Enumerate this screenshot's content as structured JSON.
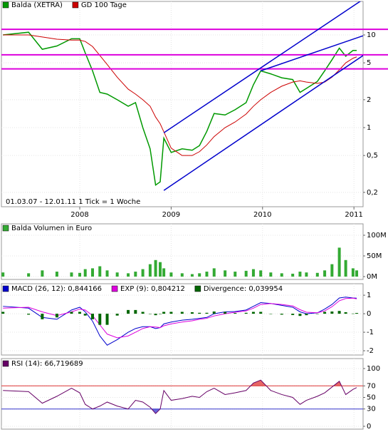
{
  "chart_data": [
    {
      "type": "line",
      "log_scale": true,
      "annotation": "01.03.07 - 12.01.11   1 Tick = 1 Woche",
      "x": [
        2007.16,
        2007.44,
        2007.59,
        2007.75,
        2007.91,
        2008.0,
        2008.06,
        2008.14,
        2008.22,
        2008.3,
        2008.41,
        2008.53,
        2008.61,
        2008.69,
        2008.77,
        2008.83,
        2008.88,
        2008.92,
        2009.0,
        2009.12,
        2009.23,
        2009.31,
        2009.39,
        2009.47,
        2009.59,
        2009.7,
        2009.82,
        2009.9,
        2009.98,
        2010.09,
        2010.21,
        2010.33,
        2010.41,
        2010.48,
        2010.6,
        2010.68,
        2010.76,
        2010.84,
        2010.91,
        2010.99,
        2011.03
      ],
      "xlim": [
        2007.143,
        2011.1
      ],
      "xticks": [
        2008,
        2009,
        2010,
        2011
      ],
      "ylim": [
        0.14,
        23
      ],
      "yticks": [
        {
          "value": 0.2,
          "label": "0,2"
        },
        {
          "value": 0.5,
          "label": "0,5"
        },
        1,
        2,
        5,
        10
      ],
      "series": [
        {
          "name": "Balda (XETRA)",
          "color": "#009900",
          "values": [
            10,
            10.7,
            7,
            7.6,
            9.1,
            9.1,
            6.4,
            4.1,
            2.4,
            2.3,
            2,
            1.7,
            1.86,
            1,
            0.59,
            0.24,
            0.26,
            0.77,
            0.54,
            0.59,
            0.57,
            0.64,
            0.91,
            1.42,
            1.37,
            1.56,
            1.86,
            2.9,
            4.1,
            3.8,
            3.45,
            3.3,
            2.4,
            2.65,
            3.15,
            4.1,
            5.4,
            7.2,
            5.9,
            6.8,
            6.8
          ]
        },
        {
          "name": "GD 100 Tage",
          "color": "#cc0000",
          "values": [
            10,
            10,
            9.5,
            9,
            8.8,
            8.8,
            8.5,
            7.5,
            6,
            4.8,
            3.5,
            2.6,
            2.3,
            2.0,
            1.7,
            1.3,
            1.1,
            0.9,
            0.6,
            0.5,
            0.5,
            0.55,
            0.65,
            0.8,
            1.0,
            1.15,
            1.4,
            1.7,
            2.0,
            2.4,
            2.8,
            3.1,
            3.2,
            3.1,
            3.0,
            3.1,
            3.5,
            4.2,
            5.0,
            5.6,
            5.8
          ]
        }
      ],
      "horizontal_lines": {
        "color": "#dd00dd",
        "values": [
          11.5,
          6.1,
          4.3
        ]
      },
      "trend_lines": {
        "color": "#0000cc",
        "lines": [
          {
            "x": [
              2008.92,
              2011.1
            ],
            "y": [
              0.88,
              24.2
            ]
          },
          {
            "x": [
              2008.92,
              2011.1
            ],
            "y": [
              0.21,
              6.0
            ]
          },
          {
            "x": [
              2009.98,
              2011.1
            ],
            "y": [
              4.1,
              9.8
            ]
          }
        ]
      }
    },
    {
      "type": "bar",
      "x": [
        2007.16,
        2007.44,
        2007.59,
        2007.75,
        2007.91,
        2008.0,
        2008.06,
        2008.14,
        2008.22,
        2008.3,
        2008.41,
        2008.53,
        2008.61,
        2008.69,
        2008.77,
        2008.83,
        2008.88,
        2008.92,
        2009.0,
        2009.12,
        2009.23,
        2009.31,
        2009.39,
        2009.47,
        2009.59,
        2009.7,
        2009.82,
        2009.9,
        2009.98,
        2010.09,
        2010.21,
        2010.33,
        2010.41,
        2010.48,
        2010.6,
        2010.68,
        2010.76,
        2010.84,
        2010.91,
        2010.99,
        2011.03
      ],
      "xlim": [
        2007.143,
        2011.1
      ],
      "ylim": [
        0,
        100000000
      ],
      "yticks": [
        {
          "value": 0,
          "label": "0M"
        },
        {
          "value": 50000000,
          "label": "50M"
        },
        {
          "value": 100000000,
          "label": "100M"
        }
      ],
      "series": [
        {
          "name": "Balda Volumen in Euro",
          "color": "#33aa33",
          "values": [
            10000000,
            8000000,
            15000000,
            12000000,
            10000000,
            9000000,
            18000000,
            20000000,
            25000000,
            15000000,
            10000000,
            8000000,
            12000000,
            18000000,
            30000000,
            40000000,
            35000000,
            20000000,
            10000000,
            8000000,
            6000000,
            8000000,
            12000000,
            20000000,
            15000000,
            12000000,
            14000000,
            18000000,
            15000000,
            10000000,
            8000000,
            7000000,
            12000000,
            10000000,
            9000000,
            15000000,
            30000000,
            70000000,
            40000000,
            20000000,
            15000000
          ]
        }
      ]
    },
    {
      "type": "line",
      "x": [
        2007.16,
        2007.44,
        2007.59,
        2007.75,
        2007.91,
        2008.0,
        2008.06,
        2008.14,
        2008.22,
        2008.3,
        2008.41,
        2008.53,
        2008.61,
        2008.69,
        2008.77,
        2008.83,
        2008.88,
        2008.92,
        2009.0,
        2009.12,
        2009.23,
        2009.31,
        2009.39,
        2009.47,
        2009.59,
        2009.7,
        2009.82,
        2009.9,
        2009.98,
        2010.09,
        2010.21,
        2010.33,
        2010.41,
        2010.48,
        2010.6,
        2010.68,
        2010.76,
        2010.84,
        2010.91,
        2010.99,
        2011.03
      ],
      "xlim": [
        2007.143,
        2011.1
      ],
      "ylim": [
        -2.23,
        1.62
      ],
      "yticks": [
        -2,
        -1,
        0,
        1
      ],
      "series": [
        {
          "name": "MACD (26, 12): 0,844166",
          "color": "#0000cc",
          "values": [
            0.4,
            0.3,
            -0.2,
            -0.3,
            0.2,
            0.35,
            0.1,
            -0.4,
            -1.2,
            -1.7,
            -1.4,
            -1.0,
            -0.8,
            -0.7,
            -0.7,
            -0.8,
            -0.75,
            -0.55,
            -0.45,
            -0.35,
            -0.3,
            -0.25,
            -0.2,
            0.0,
            0.1,
            0.12,
            0.2,
            0.4,
            0.6,
            0.55,
            0.45,
            0.35,
            0.1,
            0.0,
            0.05,
            0.25,
            0.5,
            0.85,
            0.9,
            0.85,
            0.84
          ]
        },
        {
          "name": "EXP (9): 0,804212",
          "color": "#dd00dd",
          "values": [
            0.3,
            0.35,
            0.1,
            -0.1,
            0.1,
            0.25,
            0.2,
            -0.1,
            -0.6,
            -1.1,
            -1.3,
            -1.2,
            -1.0,
            -0.8,
            -0.7,
            -0.72,
            -0.75,
            -0.65,
            -0.55,
            -0.45,
            -0.38,
            -0.3,
            -0.25,
            -0.12,
            0.0,
            0.08,
            0.15,
            0.3,
            0.5,
            0.55,
            0.5,
            0.42,
            0.22,
            0.08,
            0.05,
            0.15,
            0.38,
            0.7,
            0.82,
            0.84,
            0.8
          ]
        },
        {
          "name": "Divergence: 0,039954",
          "color": "#006600",
          "type": "bar",
          "values": [
            0.1,
            -0.05,
            -0.3,
            -0.2,
            0.1,
            0.1,
            -0.1,
            -0.3,
            -0.6,
            -0.6,
            -0.1,
            0.2,
            0.2,
            0.1,
            0.0,
            -0.08,
            0.0,
            0.1,
            0.1,
            0.1,
            0.08,
            0.05,
            0.05,
            0.12,
            0.1,
            0.04,
            0.05,
            0.1,
            0.1,
            0.0,
            -0.05,
            -0.07,
            -0.12,
            -0.08,
            0.0,
            0.1,
            0.12,
            0.15,
            0.08,
            0.01,
            0.04
          ]
        }
      ]
    },
    {
      "type": "line",
      "x": [
        2007.16,
        2007.44,
        2007.59,
        2007.75,
        2007.91,
        2008.0,
        2008.06,
        2008.14,
        2008.22,
        2008.3,
        2008.41,
        2008.53,
        2008.61,
        2008.69,
        2008.77,
        2008.83,
        2008.88,
        2008.92,
        2009.0,
        2009.12,
        2009.23,
        2009.31,
        2009.39,
        2009.47,
        2009.59,
        2009.7,
        2009.82,
        2009.9,
        2009.98,
        2010.09,
        2010.21,
        2010.33,
        2010.41,
        2010.48,
        2010.6,
        2010.68,
        2010.76,
        2010.84,
        2010.91,
        2010.99,
        2011.03
      ],
      "xlim": [
        2007.143,
        2011.1
      ],
      "ylim": [
        0,
        100
      ],
      "yticks": [
        0,
        30,
        50,
        70,
        100
      ],
      "levels": [
        {
          "value": 30,
          "color": "#3333cc"
        },
        {
          "value": 70,
          "color": "#dd3333"
        }
      ],
      "series": [
        {
          "name": "RSI (14): 66,719689",
          "color": "#660066",
          "values": [
            62,
            60,
            40,
            52,
            66,
            58,
            38,
            30,
            35,
            42,
            35,
            30,
            45,
            42,
            33,
            22,
            30,
            62,
            45,
            48,
            52,
            50,
            60,
            66,
            55,
            58,
            62,
            75,
            80,
            62,
            55,
            50,
            38,
            45,
            52,
            58,
            68,
            78,
            55,
            64,
            67
          ]
        }
      ]
    }
  ]
}
